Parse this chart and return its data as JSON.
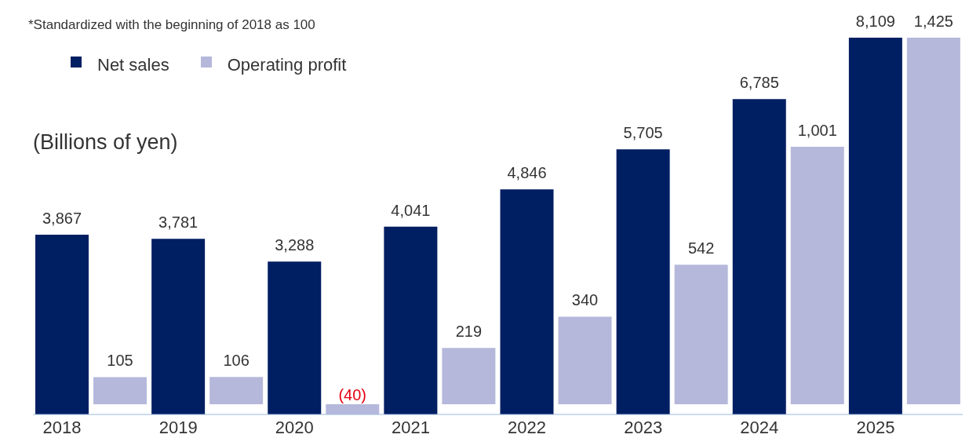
{
  "chart_data": {
    "type": "bar",
    "annotations": [
      "*Standardized with the beginning of 2018 as 100"
    ],
    "ylabel": "(Billions of yen)",
    "categories": [
      "2018",
      "2019",
      "2020",
      "2021",
      "2022",
      "2023",
      "2024",
      "2025"
    ],
    "series": [
      {
        "name": "Net sales",
        "color": "#001e62",
        "values": [
          3867,
          3781,
          3288,
          4041,
          4846,
          5705,
          6785,
          8109
        ],
        "value_labels": [
          "3,867",
          "3,781",
          "3,288",
          "4,041",
          "4,846",
          "5,705",
          "6,785",
          "8,109"
        ]
      },
      {
        "name": "Operating profit",
        "color": "#b5b8db",
        "axis": "y2",
        "values": [
          105,
          106,
          -40,
          219,
          340,
          542,
          1001,
          1425
        ],
        "value_labels": [
          "105",
          "106",
          "(40)",
          "219",
          "340",
          "542",
          "1,001",
          "1,425"
        ]
      }
    ],
    "tick_labels": "x",
    "legend": "top left"
  }
}
